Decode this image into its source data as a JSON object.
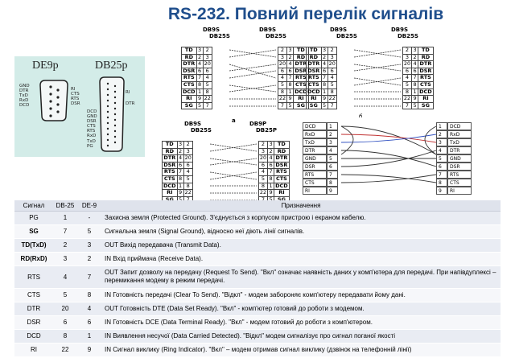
{
  "title": "RS-232. Повний перелік сигналів",
  "connectors": {
    "de9_label": "DE9p",
    "db25_label": "DB25p",
    "de9_pins": [
      "GND",
      "DTR",
      "TxD",
      "RxD",
      "DCD"
    ],
    "de9_pins_right": [
      "RI",
      "CTS",
      "RTS",
      "DSR"
    ],
    "db25_pins_left": [
      "DCD",
      "GND",
      "DSR",
      "CTS",
      "RTS",
      "RxD",
      "TxD",
      "PG"
    ],
    "db25_pins_right": [
      "RI",
      "DTR"
    ]
  },
  "wiring_headers": {
    "db9": "DB9S",
    "db25": "DB25S",
    "db9p": "DB9P",
    "db25p": "DB25P",
    "label_a": "a",
    "label_b": "б"
  },
  "wiring_left": [
    {
      "sig": "TD",
      "p9": "3",
      "p25": "2",
      "p25r": "2",
      "p9r": "3",
      "sigr": "TD"
    },
    {
      "sig": "RD",
      "p9": "2",
      "p25": "3",
      "p25r": "3",
      "p9r": "2",
      "sigr": "RD"
    },
    {
      "sig": "DTR",
      "p9": "4",
      "p25": "20",
      "p25r": "20",
      "p9r": "4",
      "sigr": "DTR"
    },
    {
      "sig": "DSR",
      "p9": "6",
      "p25": "6",
      "p25r": "6",
      "p9r": "6",
      "sigr": "DSR"
    },
    {
      "sig": "RTS",
      "p9": "7",
      "p25": "4",
      "p25r": "4",
      "p9r": "7",
      "sigr": "RTS"
    },
    {
      "sig": "CTS",
      "p9": "8",
      "p25": "5",
      "p25r": "5",
      "p9r": "8",
      "sigr": "CTS"
    },
    {
      "sig": "DCD",
      "p9": "1",
      "p25": "8",
      "p25r": "8",
      "p9r": "1",
      "sigr": "DCD"
    },
    {
      "sig": "RI",
      "p9": "9",
      "p25": "22",
      "p25r": "22",
      "p9r": "9",
      "sigr": "RI"
    },
    {
      "sig": "SG",
      "p9": "5",
      "p25": "7",
      "p25r": "7",
      "p9r": "5",
      "sigr": "SG"
    }
  ],
  "diagram_b": {
    "left": [
      [
        "DCD",
        "1"
      ],
      [
        "RxD",
        "2"
      ],
      [
        "TxD",
        "3"
      ],
      [
        "DTR",
        "4"
      ],
      [
        "GND",
        "5"
      ],
      [
        "DSR",
        "6"
      ],
      [
        "RTS",
        "7"
      ],
      [
        "CTS",
        "8"
      ],
      [
        "RI",
        "9"
      ]
    ],
    "right": [
      [
        "1",
        "DCD"
      ],
      [
        "2",
        "RxD"
      ],
      [
        "3",
        "TxD"
      ],
      [
        "4",
        "DTR"
      ],
      [
        "5",
        "GND"
      ],
      [
        "6",
        "DSR"
      ],
      [
        "7",
        "RTS"
      ],
      [
        "8",
        "CTS"
      ],
      [
        "9",
        "RI"
      ]
    ]
  },
  "table": {
    "headers": [
      "Сигнал",
      "DB-25",
      "DE-9",
      "Призначення"
    ],
    "rows": [
      {
        "sig": "PG",
        "db25": "1",
        "de9": "-",
        "desc": "Захисна земля (Protected Ground). З'єднується з корпусом пристрою і екраном кабелю."
      },
      {
        "sig": "SG",
        "db25": "7",
        "de9": "5",
        "desc": "Сигнальна земля (Signal Ground), відносно неї діють лінії сигналів."
      },
      {
        "sig": "TD(TxD)",
        "db25": "2",
        "de9": "3",
        "desc": "OUT Вихід передавача (Transmit Data)."
      },
      {
        "sig": "RD(RxD)",
        "db25": "3",
        "de9": "2",
        "desc": "IN Вхід приймача (Receive Data)."
      },
      {
        "sig": "RTS",
        "db25": "4",
        "de9": "7",
        "desc": "OUT Запит дозволу на передачу (Request To Send). \"Вкл\" означає наявність даних у комп'ютера для передачі. При напівдуплексі – перемикання модему в режим передачі."
      },
      {
        "sig": "CTS",
        "db25": "5",
        "de9": "8",
        "desc": "IN Готовність передачі (Clear To Send). \"Відкл\" - модем забороняє комп'ютеру передавати йому дані."
      },
      {
        "sig": "DTR",
        "db25": "20",
        "de9": "4",
        "desc": "OUT Готовність DTE (Data Set Ready). \"Вкл\" - комп'ютер готовий до роботи з модемом."
      },
      {
        "sig": "DSR",
        "db25": "6",
        "de9": "6",
        "desc": "IN Готовність DCE (Data Terminal Ready). \"Вкл\" - модем готовий до роботи з комп'ютером."
      },
      {
        "sig": "DCD",
        "db25": "8",
        "de9": "1",
        "desc": "IN Виявлення несучої (Data Carried Detected). \"Відкл\" модем сигналізує про сигнал поганої якості"
      },
      {
        "sig": "RI",
        "db25": "22",
        "de9": "9",
        "desc": "IN Сигнал виклику (Ring Indicator). \"Вкл\" – модем отримав сигнал виклику (дзвінок на телефонній лінії)"
      }
    ]
  }
}
